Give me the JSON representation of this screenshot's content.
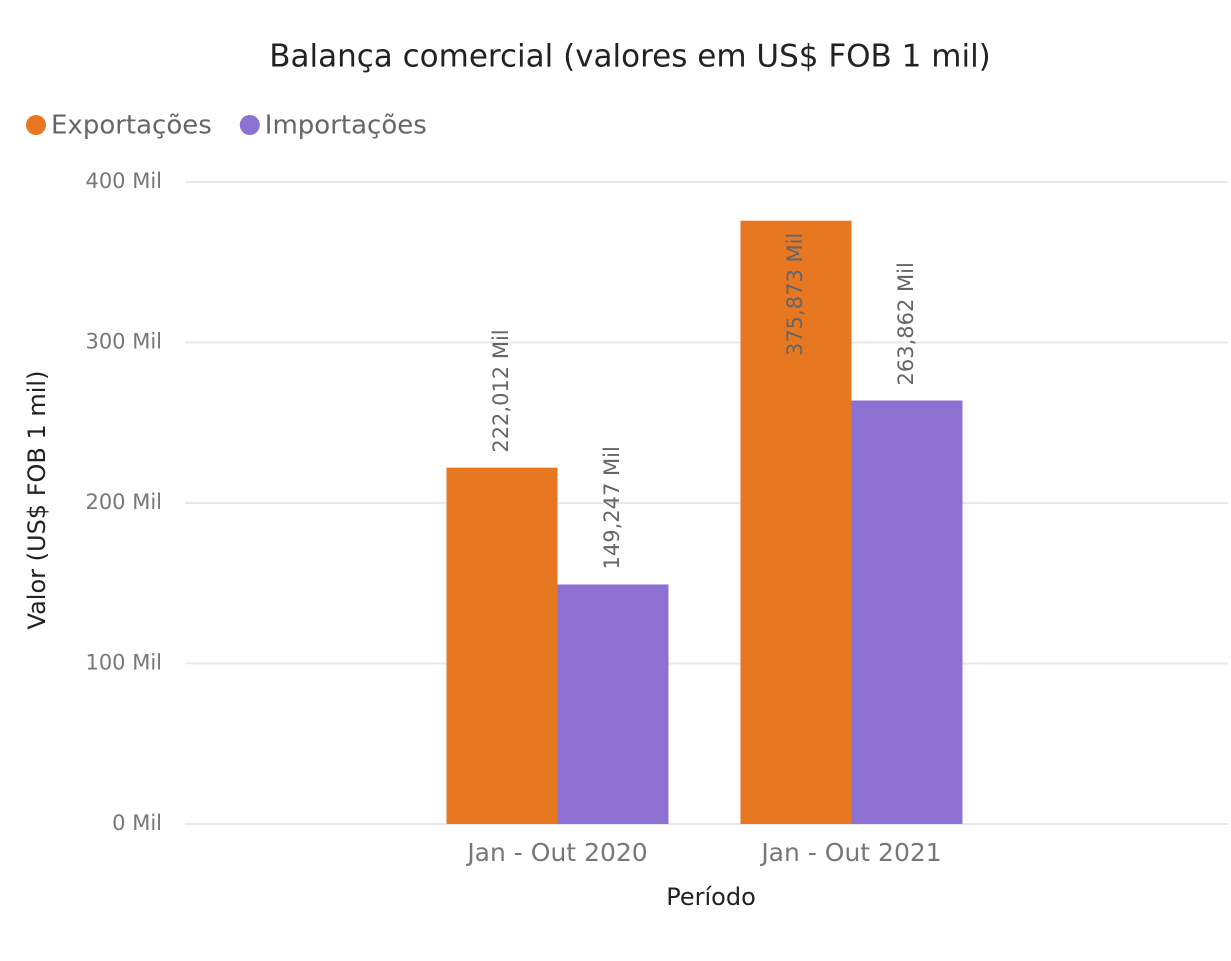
{
  "chart_data": {
    "type": "bar",
    "title": "Balança comercial (valores em US$ FOB 1 mil)",
    "x_label": "Período",
    "y_label": "Valor (US$ FOB 1 mil)",
    "categories": [
      "Jan - Out 2020",
      "Jan - Out 2021"
    ],
    "series": [
      {
        "name": "Exportações",
        "color": "#E87722",
        "values": [
          222012,
          375873
        ],
        "value_labels": [
          "222,012 Mil",
          "375,873 Mil"
        ]
      },
      {
        "name": "Importações",
        "color": "#8C71D2",
        "values": [
          149247,
          263862
        ],
        "value_labels": [
          "149,247 Mil",
          "263,862 Mil"
        ]
      }
    ],
    "ylim": [
      0,
      400000
    ],
    "yticks": [
      {
        "value": 0,
        "label": "0 Mil"
      },
      {
        "value": 100000,
        "label": "100 Mil"
      },
      {
        "value": 200000,
        "label": "200 Mil"
      },
      {
        "value": 300000,
        "label": "300 Mil"
      },
      {
        "value": 400000,
        "label": "400 Mil"
      }
    ],
    "grid": true,
    "legend": "top-left"
  }
}
